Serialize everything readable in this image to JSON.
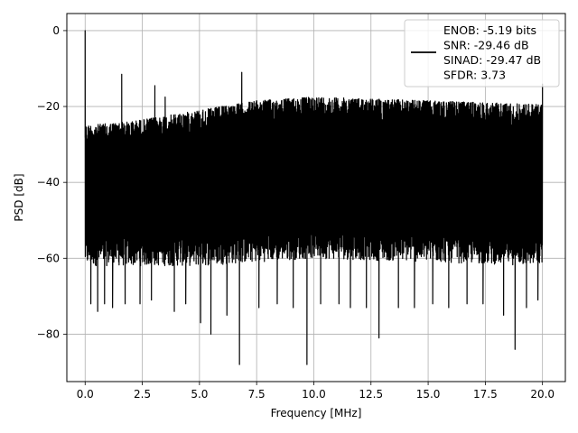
{
  "chart_data": {
    "type": "line",
    "xlabel": "Frequency [MHz]",
    "ylabel": "PSD [dB]",
    "xlim": [
      -0.8,
      21.0
    ],
    "ylim": [
      -92.5,
      4.5
    ],
    "xticks": [
      0.0,
      2.5,
      5.0,
      7.5,
      10.0,
      12.5,
      15.0,
      17.5,
      20.0
    ],
    "xtick_labels": [
      "0.0",
      "2.5",
      "5.0",
      "7.5",
      "10.0",
      "12.5",
      "15.0",
      "17.5",
      "20.0"
    ],
    "yticks": [
      0,
      -20,
      -40,
      -60,
      -80
    ],
    "ytick_labels": [
      "0",
      "−20",
      "−40",
      "−60",
      "−80"
    ],
    "grid": true,
    "legend_position": "top-right",
    "series": [
      {
        "color": "#000000",
        "x_range": [
          0.0,
          20.0
        ],
        "upper_envelope": [
          [
            0.0,
            -25
          ],
          [
            2.0,
            -24
          ],
          [
            5.0,
            -21
          ],
          [
            7.5,
            -18.5
          ],
          [
            10.0,
            -17.5
          ],
          [
            12.5,
            -18
          ],
          [
            15.0,
            -18.5
          ],
          [
            17.5,
            -19
          ],
          [
            20.0,
            -19.5
          ]
        ],
        "lower_envelope": [
          [
            0.0,
            -62
          ],
          [
            5.0,
            -62
          ],
          [
            10.0,
            -60
          ],
          [
            15.0,
            -61
          ],
          [
            20.0,
            -62
          ]
        ],
        "peaks": [
          [
            0.0,
            0.0
          ],
          [
            1.6,
            -11.5
          ],
          [
            3.05,
            -14.5
          ],
          [
            3.5,
            -17.5
          ],
          [
            6.85,
            -11
          ],
          [
            20.0,
            -14
          ]
        ],
        "dips": [
          [
            0.25,
            -72
          ],
          [
            0.55,
            -74
          ],
          [
            0.85,
            -72
          ],
          [
            1.2,
            -73
          ],
          [
            1.75,
            -72
          ],
          [
            2.4,
            -72
          ],
          [
            2.9,
            -71
          ],
          [
            3.9,
            -74
          ],
          [
            4.4,
            -72
          ],
          [
            5.05,
            -77
          ],
          [
            5.5,
            -80
          ],
          [
            6.2,
            -75
          ],
          [
            6.75,
            -88
          ],
          [
            7.6,
            -73
          ],
          [
            8.4,
            -72
          ],
          [
            9.1,
            -73
          ],
          [
            9.7,
            -88
          ],
          [
            10.3,
            -72
          ],
          [
            11.1,
            -72
          ],
          [
            11.6,
            -73
          ],
          [
            12.3,
            -73
          ],
          [
            12.85,
            -81
          ],
          [
            13.7,
            -73
          ],
          [
            14.4,
            -73
          ],
          [
            15.2,
            -72
          ],
          [
            15.9,
            -73
          ],
          [
            16.7,
            -72
          ],
          [
            17.4,
            -72
          ],
          [
            18.3,
            -75
          ],
          [
            18.8,
            -84
          ],
          [
            19.3,
            -73
          ],
          [
            19.8,
            -71
          ]
        ]
      }
    ],
    "legend_lines": [
      "ENOB: -5.19 bits",
      "SNR: -29.46 dB",
      "SINAD: -29.47 dB",
      "SFDR: 3.73"
    ]
  }
}
